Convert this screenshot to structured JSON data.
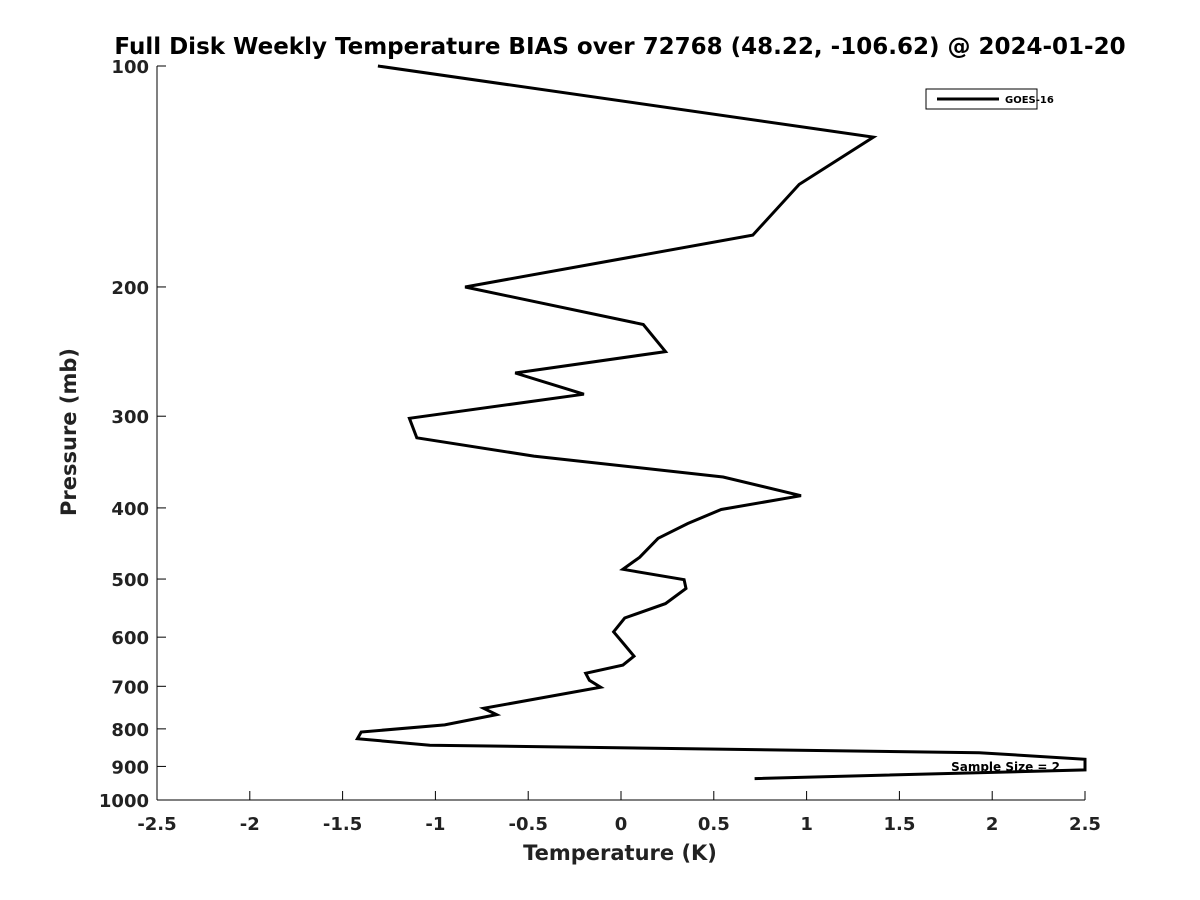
{
  "chart_data": {
    "type": "line",
    "title": "Full Disk Weekly Temperature BIAS over 72768 (48.22, -106.62) @ 2024-01-20",
    "xlabel": "Temperature (K)",
    "ylabel": "Pressure (mb)",
    "xlim": [
      -2.5,
      2.5
    ],
    "ylim": [
      1000,
      100
    ],
    "y_scale": "log",
    "y_reversed": true,
    "grid": false,
    "legend_position": "top-right",
    "x_ticks": [
      -2.5,
      -2,
      -1.5,
      -1,
      -0.5,
      0,
      0.5,
      1,
      1.5,
      2,
      2.5
    ],
    "x_tick_labels": [
      "-2.5",
      "-2",
      "-1.5",
      "-1",
      "-0.5",
      "0",
      "0.5",
      "1",
      "1.5",
      "2",
      "2.5"
    ],
    "y_ticks": [
      100,
      200,
      300,
      400,
      500,
      600,
      700,
      800,
      900,
      1000
    ],
    "y_tick_labels": [
      "100",
      "200",
      "300",
      "400",
      "500",
      "600",
      "700",
      "800",
      "900",
      "1000"
    ],
    "series": [
      {
        "name": "GOES-16",
        "color": "#000000",
        "points": [
          {
            "x": -1.31,
            "p": 100
          },
          {
            "x": 1.36,
            "p": 125
          },
          {
            "x": 0.96,
            "p": 145
          },
          {
            "x": 0.71,
            "p": 170
          },
          {
            "x": -0.84,
            "p": 200
          },
          {
            "x": 0.12,
            "p": 225
          },
          {
            "x": 0.24,
            "p": 245
          },
          {
            "x": -0.57,
            "p": 262
          },
          {
            "x": -0.2,
            "p": 280
          },
          {
            "x": -1.14,
            "p": 302
          },
          {
            "x": -1.1,
            "p": 321
          },
          {
            "x": -0.47,
            "p": 340
          },
          {
            "x": 0.55,
            "p": 363
          },
          {
            "x": 0.97,
            "p": 385
          },
          {
            "x": 0.54,
            "p": 402
          },
          {
            "x": 0.36,
            "p": 420
          },
          {
            "x": 0.2,
            "p": 440
          },
          {
            "x": 0.1,
            "p": 467
          },
          {
            "x": 0.01,
            "p": 485
          },
          {
            "x": 0.34,
            "p": 501
          },
          {
            "x": 0.35,
            "p": 515
          },
          {
            "x": 0.24,
            "p": 540
          },
          {
            "x": 0.02,
            "p": 565
          },
          {
            "x": -0.04,
            "p": 590
          },
          {
            "x": 0.02,
            "p": 615
          },
          {
            "x": 0.07,
            "p": 637
          },
          {
            "x": 0.01,
            "p": 655
          },
          {
            "x": -0.19,
            "p": 672
          },
          {
            "x": -0.17,
            "p": 687
          },
          {
            "x": -0.11,
            "p": 702
          },
          {
            "x": -0.74,
            "p": 750
          },
          {
            "x": -0.67,
            "p": 765
          },
          {
            "x": -0.95,
            "p": 790
          },
          {
            "x": -1.4,
            "p": 808
          },
          {
            "x": -1.42,
            "p": 825
          },
          {
            "x": -1.03,
            "p": 842
          },
          {
            "x": 1.93,
            "p": 862
          },
          {
            "x": 2.5,
            "p": 880
          },
          {
            "x": 2.5,
            "p": 910
          },
          {
            "x": 0.72,
            "p": 935
          }
        ]
      }
    ],
    "annotations": [
      "Sample Size = 2"
    ]
  }
}
